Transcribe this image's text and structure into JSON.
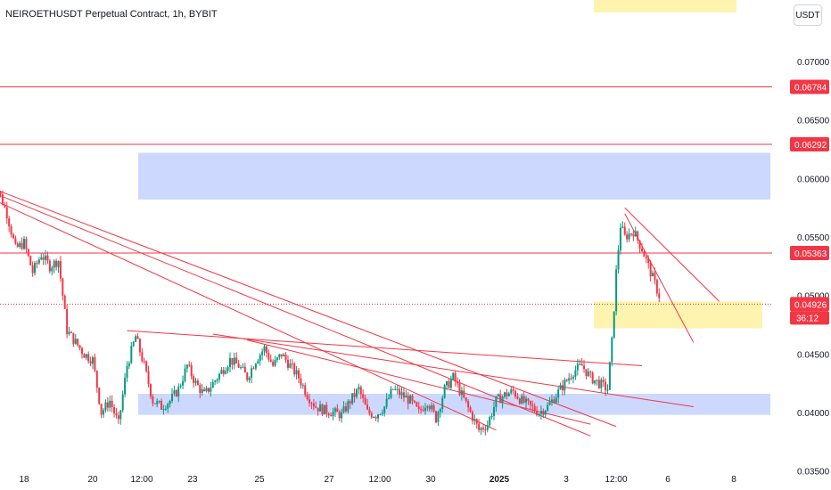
{
  "title": "NEIROETHUSDT Perpetual Contract, 1h, BYBIT",
  "currency_button": "USDT",
  "colors": {
    "up": "#089981",
    "down": "#f23645",
    "level": "#f23645",
    "zone_blue": "#bccbff",
    "zone_yellow": "#fff3a6",
    "trend": "#f23645"
  },
  "chart_data": {
    "type": "candlestick",
    "y_axis": {
      "ticks": [
        "0.07000",
        "0.06500",
        "0.06000",
        "0.05500",
        "0.05000",
        "0.04500",
        "0.04000",
        "0.03500"
      ],
      "range": [
        0.0333,
        0.0745
      ]
    },
    "x_axis": {
      "labels": [
        "18",
        "20",
        "12:00",
        "23",
        "25",
        "27",
        "12:00",
        "30",
        "2025",
        "3",
        "12:00",
        "6",
        "8"
      ]
    },
    "horizontal_levels": [
      {
        "price": 0.06784,
        "label": "0.06784"
      },
      {
        "price": 0.06292,
        "label": "0.06292"
      },
      {
        "price": 0.05363,
        "label": "0.05363"
      }
    ],
    "current_price": {
      "price": 0.04926,
      "label": "0.04926",
      "countdown": "36:12"
    },
    "zones": [
      {
        "color": "blue",
        "price_from": 0.0582,
        "price_to": 0.0622
      },
      {
        "color": "blue",
        "price_from": 0.0398,
        "price_to": 0.0416
      },
      {
        "color": "yellow",
        "price_from": 0.0472,
        "price_to": 0.0495
      },
      {
        "color": "yellow",
        "price_from": 0.0742,
        "price_to": 0.076
      }
    ],
    "price_path": [
      [
        "Dec 17 00:00",
        0.0582
      ],
      [
        "Dec 17 06:00",
        0.059
      ],
      [
        "Dec 17 12:00",
        0.057
      ],
      [
        "Dec 17 18:00",
        0.054
      ],
      [
        "Dec 18 00:00",
        0.0545
      ],
      [
        "Dec 18 06:00",
        0.052
      ],
      [
        "Dec 18 12:00",
        0.0535
      ],
      [
        "Dec 18 18:00",
        0.0525
      ],
      [
        "Dec 19 00:00",
        0.053
      ],
      [
        "Dec 19 06:00",
        0.047
      ],
      [
        "Dec 19 12:00",
        0.046
      ],
      [
        "Dec 19 18:00",
        0.045
      ],
      [
        "Dec 20 00:00",
        0.0445
      ],
      [
        "Dec 20 06:00",
        0.04
      ],
      [
        "Dec 20 12:00",
        0.041
      ],
      [
        "Dec 20 18:00",
        0.039
      ],
      [
        "Dec 21 00:00",
        0.044
      ],
      [
        "Dec 21 06:00",
        0.0465
      ],
      [
        "Dec 21 12:00",
        0.044
      ],
      [
        "Dec 21 18:00",
        0.041
      ],
      [
        "Dec 22 00:00",
        0.0405
      ],
      [
        "Dec 22 06:00",
        0.041
      ],
      [
        "Dec 22 12:00",
        0.042
      ],
      [
        "Dec 22 18:00",
        0.044
      ],
      [
        "Dec 23 00:00",
        0.0425
      ],
      [
        "Dec 23 06:00",
        0.0415
      ],
      [
        "Dec 23 12:00",
        0.0425
      ],
      [
        "Dec 23 18:00",
        0.0435
      ],
      [
        "Dec 24 00:00",
        0.0445
      ],
      [
        "Dec 24 06:00",
        0.044
      ],
      [
        "Dec 24 12:00",
        0.043
      ],
      [
        "Dec 24 18:00",
        0.0445
      ],
      [
        "Dec 25 00:00",
        0.0455
      ],
      [
        "Dec 25 06:00",
        0.044
      ],
      [
        "Dec 25 12:00",
        0.045
      ],
      [
        "Dec 25 18:00",
        0.044
      ],
      [
        "Dec 26 00:00",
        0.043
      ],
      [
        "Dec 26 06:00",
        0.0415
      ],
      [
        "Dec 26 12:00",
        0.0405
      ],
      [
        "Dec 26 18:00",
        0.0402
      ],
      [
        "Dec 27 00:00",
        0.04
      ],
      [
        "Dec 27 06:00",
        0.0398
      ],
      [
        "Dec 27 12:00",
        0.041
      ],
      [
        "Dec 27 18:00",
        0.042
      ],
      [
        "Dec 28 00:00",
        0.04
      ],
      [
        "Dec 28 06:00",
        0.0398
      ],
      [
        "Dec 28 12:00",
        0.0405
      ],
      [
        "Dec 28 18:00",
        0.042
      ],
      [
        "Dec 29 00:00",
        0.0415
      ],
      [
        "Dec 29 06:00",
        0.041
      ],
      [
        "Dec 29 12:00",
        0.04
      ],
      [
        "Dec 29 18:00",
        0.041
      ],
      [
        "Dec 30 00:00",
        0.0395
      ],
      [
        "Dec 30 06:00",
        0.042
      ],
      [
        "Dec 30 12:00",
        0.043
      ],
      [
        "Dec 30 18:00",
        0.0415
      ],
      [
        "Dec 31 00:00",
        0.04
      ],
      [
        "Dec 31 06:00",
        0.0385
      ],
      [
        "Dec 31 12:00",
        0.039
      ],
      [
        "Dec 31 18:00",
        0.041
      ],
      [
        "Jan 01 00:00",
        0.0415
      ],
      [
        "Jan 01 06:00",
        0.0418
      ],
      [
        "Jan 01 12:00",
        0.041
      ],
      [
        "Jan 01 18:00",
        0.0405
      ],
      [
        "Jan 02 00:00",
        0.04
      ],
      [
        "Jan 02 06:00",
        0.0405
      ],
      [
        "Jan 02 12:00",
        0.0415
      ],
      [
        "Jan 02 18:00",
        0.0425
      ],
      [
        "Jan 03 00:00",
        0.0435
      ],
      [
        "Jan 03 06:00",
        0.044
      ],
      [
        "Jan 03 12:00",
        0.043
      ],
      [
        "Jan 03 18:00",
        0.0425
      ],
      [
        "Jan 04 00:00",
        0.042
      ],
      [
        "Jan 04 03:00",
        0.046
      ],
      [
        "Jan 04 06:00",
        0.052
      ],
      [
        "Jan 04 09:00",
        0.056
      ],
      [
        "Jan 04 12:00",
        0.055
      ],
      [
        "Jan 04 18:00",
        0.0555
      ],
      [
        "Jan 05 00:00",
        0.054
      ],
      [
        "Jan 05 06:00",
        0.052
      ],
      [
        "Jan 05 12:00",
        0.05
      ],
      [
        "Jan 05 18:00",
        0.0495
      ],
      [
        "Jan 06 00:00",
        0.05
      ],
      [
        "Jan 06 03:00",
        0.0495
      ],
      [
        "Jan 06 06:00",
        0.04926
      ]
    ],
    "trend_lines": [
      {
        "from": [
          "Dec 16 12:00",
          0.0595
        ],
        "to": [
          "Jan 03 12:00",
          0.038
        ]
      },
      {
        "from": [
          "Dec 16 12:00",
          0.059
        ],
        "to": [
          "Dec 31 18:00",
          0.0385
        ]
      },
      {
        "from": [
          "Dec 16 12:00",
          0.0598
        ],
        "to": [
          "Jan 04 06:00",
          0.0388
        ]
      },
      {
        "from": [
          "Dec 21 00:00",
          0.047
        ],
        "to": [
          "Jan 05 00:00",
          0.044
        ]
      },
      {
        "from": [
          "Dec 23 12:00",
          0.0467
        ],
        "to": [
          "Jan 06 12:00",
          0.0405
        ]
      },
      {
        "from": [
          "Dec 24 12:00",
          0.0462
        ],
        "to": [
          "Jan 03 12:00",
          0.039
        ]
      },
      {
        "from": [
          "Jan 04 12:00",
          0.057
        ],
        "to": [
          "Jan 06 12:00",
          0.046
        ]
      },
      {
        "from": [
          "Jan 04 12:00",
          0.0575
        ],
        "to": [
          "Jan 07 06:00",
          0.0495
        ]
      }
    ]
  }
}
